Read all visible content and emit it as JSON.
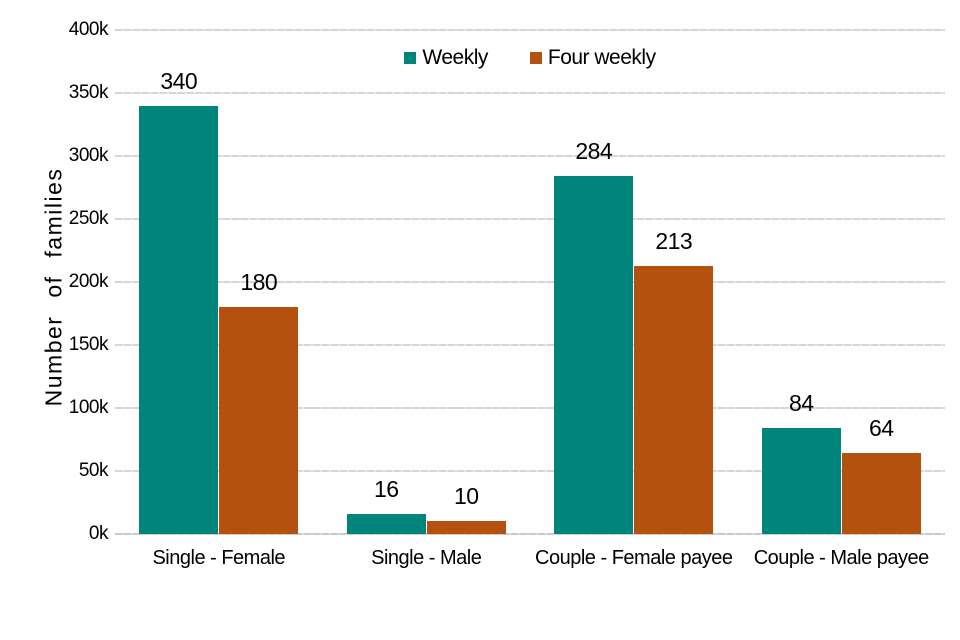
{
  "colors": {
    "background": "#FFFFFF",
    "gridline": "#D9D9D9",
    "text": "#000000",
    "weekly": "#00847C",
    "four_weekly": "#B4510F"
  },
  "chart_data": {
    "type": "bar",
    "title": "",
    "xlabel": "",
    "ylabel": "Number of families",
    "value_unit": "thousands (k)",
    "ylim": [
      0,
      400
    ],
    "grid": true,
    "legend_position": "top-center",
    "categories": [
      "Single - Female",
      "Single - Male",
      "Couple - Female payee",
      "Couple - Male payee"
    ],
    "yticks": [
      {
        "value": 0,
        "label": "0k"
      },
      {
        "value": 50,
        "label": "50k"
      },
      {
        "value": 100,
        "label": "100k"
      },
      {
        "value": 150,
        "label": "150k"
      },
      {
        "value": 200,
        "label": "200k"
      },
      {
        "value": 250,
        "label": "250k"
      },
      {
        "value": 300,
        "label": "300k"
      },
      {
        "value": 350,
        "label": "350k"
      },
      {
        "value": 400,
        "label": "400k"
      }
    ],
    "series": [
      {
        "name": "Weekly",
        "color": "#00847C",
        "values": [
          340,
          16,
          284,
          84
        ]
      },
      {
        "name": "Four weekly",
        "color": "#B4510F",
        "values": [
          180,
          10,
          213,
          64
        ]
      }
    ]
  }
}
